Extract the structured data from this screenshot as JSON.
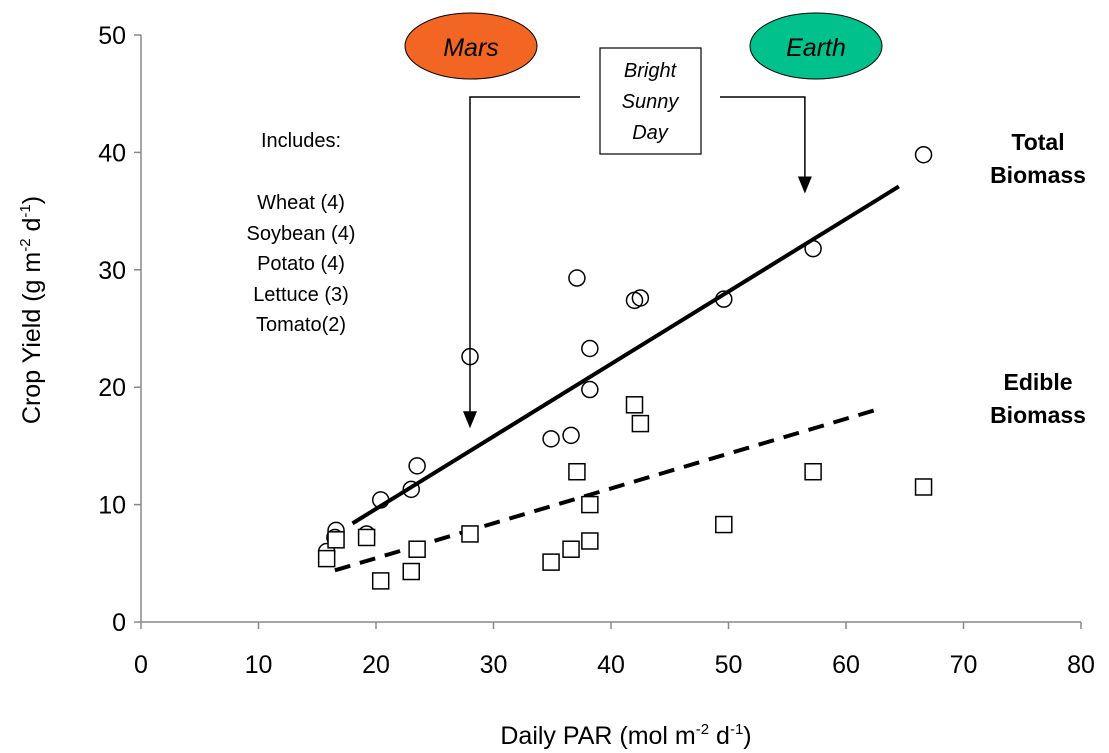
{
  "chart_data": {
    "type": "scatter",
    "title": "",
    "xlabel": "Daily PAR (mol m-2 d-1)",
    "xlabel_parts": {
      "main": "Daily PAR (mol m",
      "sup1": "-2",
      "mid": " d",
      "sup2": "-1",
      "end": ")"
    },
    "ylabel": "Crop Yield (g m-2 d-1)",
    "ylabel_parts": {
      "main": "Crop Yield (g m",
      "sup1": "-2",
      "mid": " d",
      "sup2": "-1",
      "end": ")"
    },
    "xlim": [
      0,
      80
    ],
    "ylim": [
      0,
      50
    ],
    "xticks": [
      0,
      10,
      20,
      30,
      40,
      50,
      60,
      70,
      80
    ],
    "yticks": [
      0,
      10,
      20,
      30,
      40,
      50
    ],
    "grid": false,
    "series": [
      {
        "name": "Total Biomass",
        "label_lines": [
          "Total",
          "Biomass"
        ],
        "marker": "circle",
        "points": [
          [
            15.8,
            6.0
          ],
          [
            16.5,
            7.2
          ],
          [
            16.6,
            7.8
          ],
          [
            19.2,
            7.5
          ],
          [
            20.4,
            10.4
          ],
          [
            23.0,
            11.3
          ],
          [
            23.5,
            13.3
          ],
          [
            28.0,
            22.6
          ],
          [
            34.9,
            15.6
          ],
          [
            36.6,
            15.9
          ],
          [
            37.1,
            29.3
          ],
          [
            38.2,
            23.3
          ],
          [
            38.2,
            19.8
          ],
          [
            42.0,
            27.4
          ],
          [
            42.5,
            27.6
          ],
          [
            49.6,
            27.5
          ],
          [
            57.2,
            31.8
          ],
          [
            66.6,
            39.8
          ]
        ],
        "trend": {
          "style": "solid",
          "from": [
            18.0,
            8.4
          ],
          "to": [
            64.5,
            37.1
          ]
        }
      },
      {
        "name": "Edible Biomass",
        "label_lines": [
          "Edible",
          "Biomass"
        ],
        "marker": "square",
        "points": [
          [
            15.8,
            5.4
          ],
          [
            16.6,
            7.0
          ],
          [
            19.2,
            7.2
          ],
          [
            20.4,
            3.5
          ],
          [
            23.0,
            4.3
          ],
          [
            23.5,
            6.2
          ],
          [
            28.0,
            7.5
          ],
          [
            34.9,
            5.1
          ],
          [
            36.6,
            6.2
          ],
          [
            37.1,
            12.8
          ],
          [
            38.2,
            10.0
          ],
          [
            38.2,
            6.9
          ],
          [
            42.0,
            18.5
          ],
          [
            42.5,
            16.9
          ],
          [
            49.6,
            8.3
          ],
          [
            57.2,
            12.8
          ],
          [
            66.6,
            11.5
          ]
        ],
        "trend": {
          "style": "dashed",
          "from": [
            16.5,
            4.4
          ],
          "to": [
            63.0,
            18.2
          ]
        }
      }
    ],
    "annotations": {
      "includes_heading": "Includes:",
      "crops": [
        "Wheat (4)",
        "Soybean  (4)",
        "Potato (4)",
        "Lettuce (3)",
        "Tomato(2)"
      ],
      "callout_lines": [
        "Bright",
        "Sunny",
        "Day"
      ],
      "planets": [
        {
          "label": "Mars",
          "color": "#f26522",
          "arrow_x": 28.0,
          "arrow_to_y": 16.5
        },
        {
          "label": "Earth",
          "color": "#00c08b",
          "arrow_x": 56.5,
          "arrow_to_y": 36.5
        }
      ]
    }
  }
}
